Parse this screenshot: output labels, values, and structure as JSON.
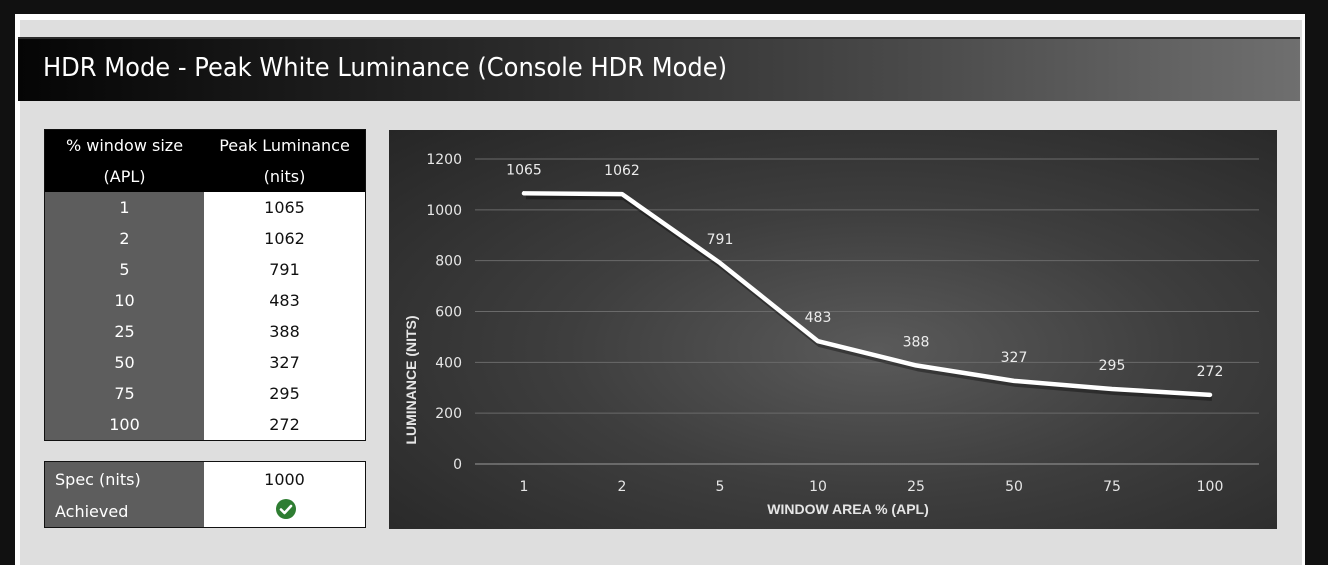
{
  "header": {
    "title": "HDR Mode - Peak White Luminance (Console HDR Mode)"
  },
  "table": {
    "col1_header_line1": "% window size",
    "col1_header_line2": "(APL)",
    "col2_header_line1": "Peak Luminance",
    "col2_header_line2": "(nits)",
    "rows": [
      {
        "window": "1",
        "luminance": "1065"
      },
      {
        "window": "2",
        "luminance": "1062"
      },
      {
        "window": "5",
        "luminance": "791"
      },
      {
        "window": "10",
        "luminance": "483"
      },
      {
        "window": "25",
        "luminance": "388"
      },
      {
        "window": "50",
        "luminance": "327"
      },
      {
        "window": "75",
        "luminance": "295"
      },
      {
        "window": "100",
        "luminance": "272"
      }
    ]
  },
  "spec": {
    "spec_label": "Spec (nits)",
    "spec_value": "1000",
    "achieved_label": "Achieved",
    "achieved_icon": "check-circle-icon",
    "achieved_color": "#2e7d32"
  },
  "chart_data": {
    "type": "line",
    "categories": [
      "1",
      "2",
      "5",
      "10",
      "25",
      "50",
      "75",
      "100"
    ],
    "values": [
      1065,
      1062,
      791,
      483,
      388,
      327,
      295,
      272
    ],
    "data_labels": [
      "1065",
      "1062",
      "791",
      "483",
      "388",
      "327",
      "295",
      "272"
    ],
    "xlabel": "WINDOW AREA % (APL)",
    "ylabel": "LUMINANCE (NITS)",
    "ylim": [
      0,
      1200
    ],
    "yticks": [
      0,
      200,
      400,
      600,
      800,
      1000,
      1200
    ],
    "grid": true,
    "legend": "none",
    "line_color": "#ffffff"
  }
}
